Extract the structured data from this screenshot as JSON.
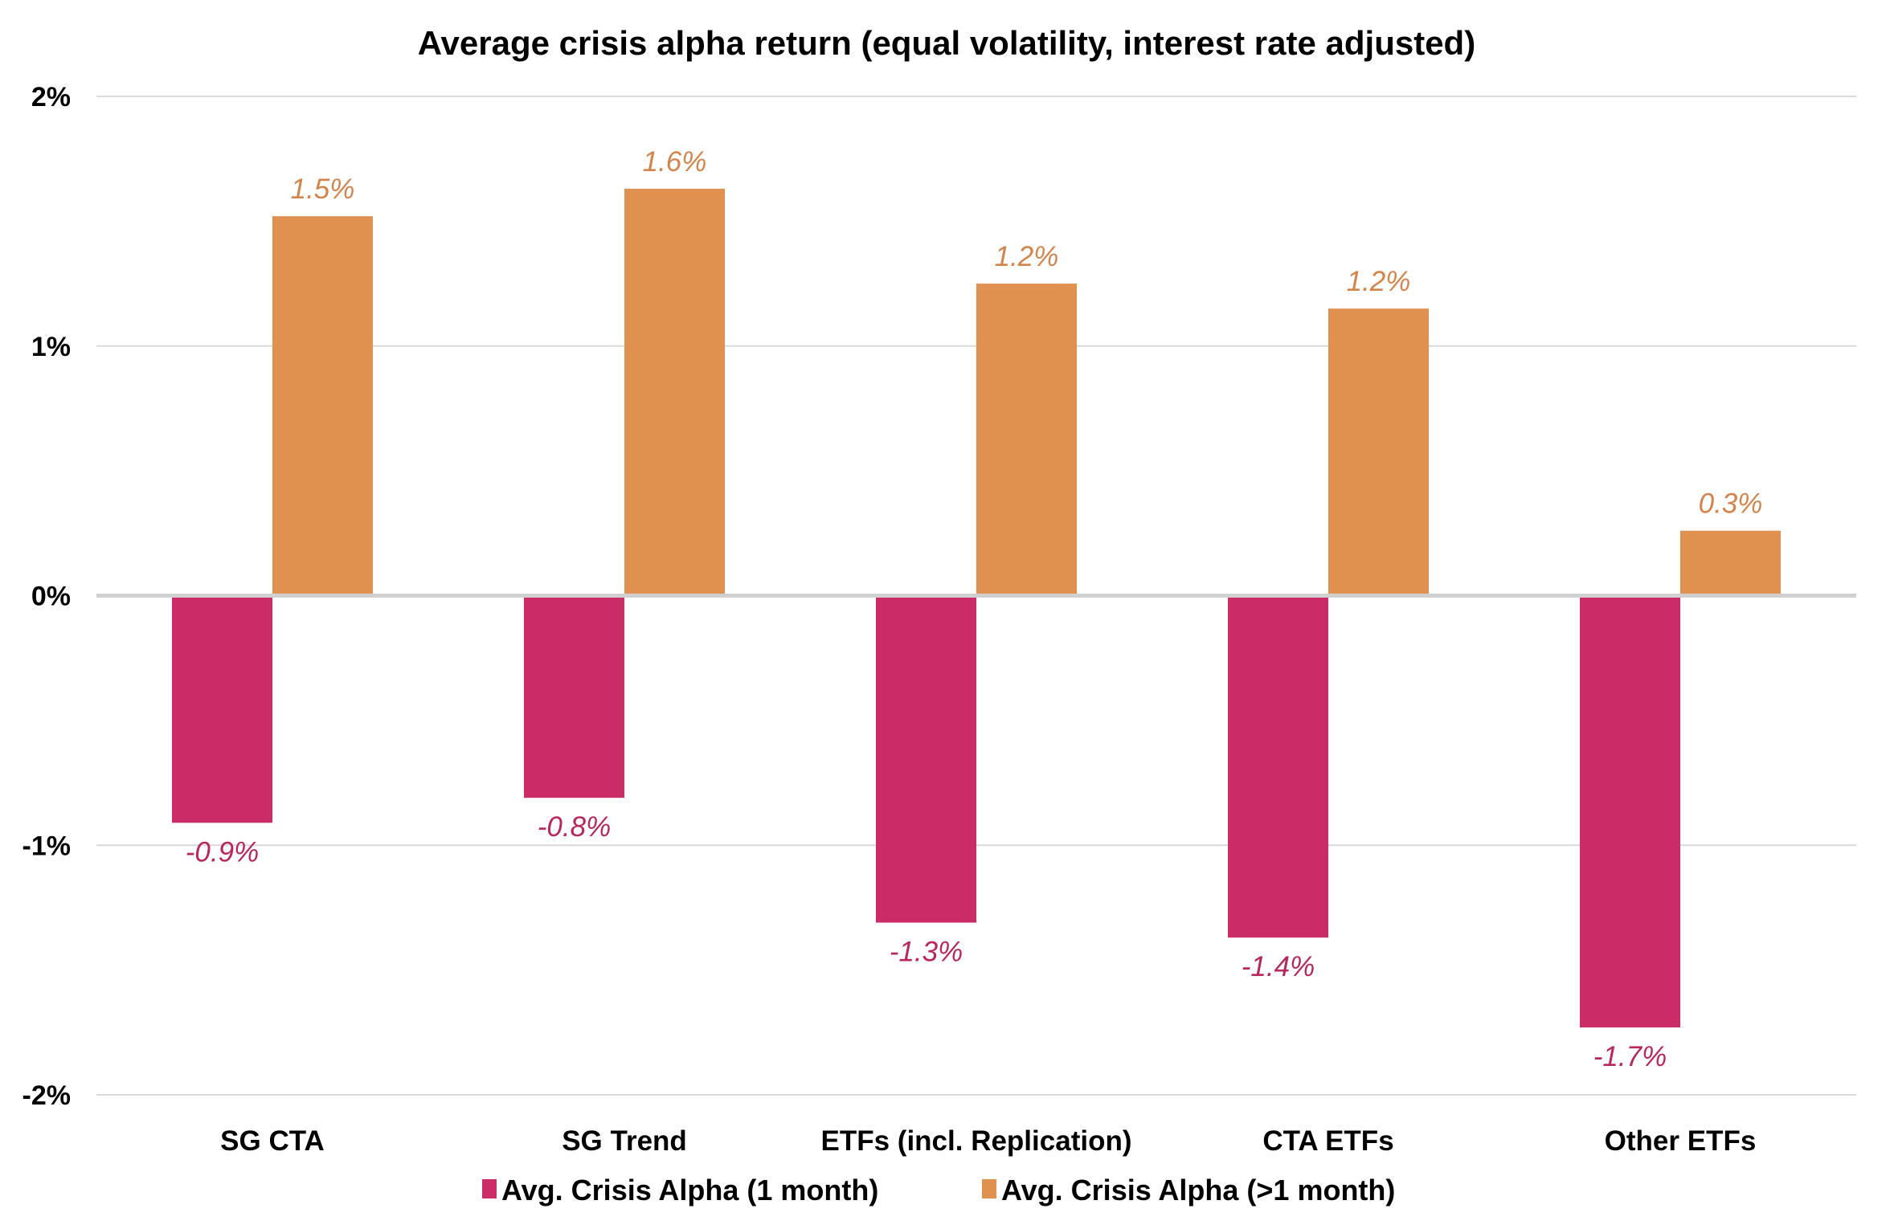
{
  "chart_data": {
    "type": "bar",
    "title": "Average crisis alpha return (equal volatility, interest rate adjusted)",
    "xlabel": "",
    "ylabel": "",
    "categories": [
      "SG CTA",
      "SG Trend",
      "ETFs (incl. Replication)",
      "CTA ETFs",
      "Other ETFs"
    ],
    "series": [
      {
        "name": "Avg. Crisis Alpha (1 month)",
        "color": "#CB2B67",
        "label_color": "#B8265C",
        "values": [
          -0.91,
          -0.81,
          -1.31,
          -1.37,
          -1.73
        ],
        "labels": [
          "-0.9%",
          "-0.8%",
          "-1.3%",
          "-1.4%",
          "-1.7%"
        ]
      },
      {
        "name": "Avg. Crisis Alpha (>1 month)",
        "color": "#E09150",
        "label_color": "#D4844A",
        "values": [
          1.52,
          1.63,
          1.25,
          1.15,
          0.26
        ],
        "labels": [
          "1.5%",
          "1.6%",
          "1.2%",
          "1.2%",
          "0.3%"
        ]
      }
    ],
    "ylim": [
      -2,
      2
    ],
    "yticks": [
      2,
      1,
      0,
      -1,
      -2
    ],
    "ytick_labels": [
      "2%",
      "1%",
      "0%",
      "-1%",
      "-2%"
    ],
    "grid": true,
    "legend": "bottom-center",
    "units": "percent"
  }
}
